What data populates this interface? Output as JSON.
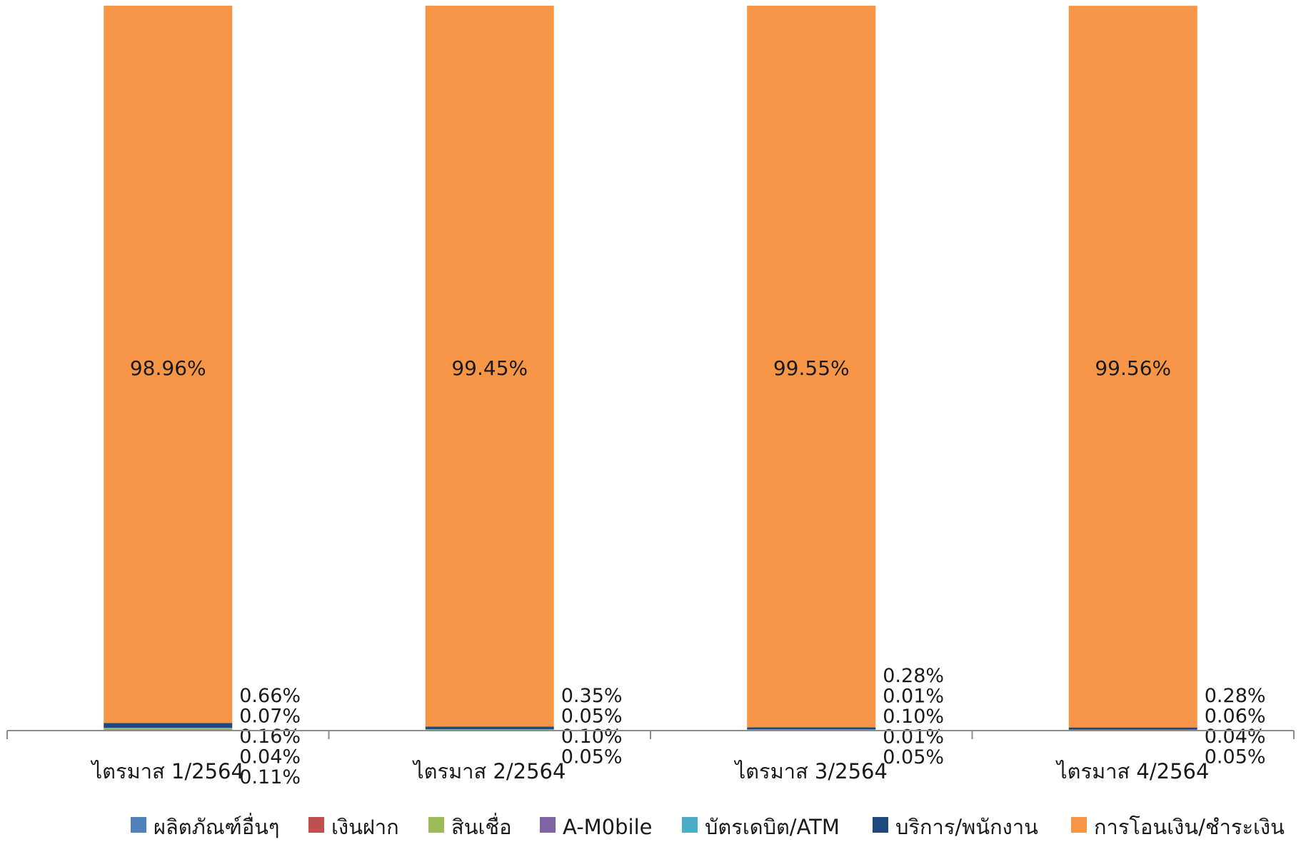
{
  "chart_data": {
    "type": "stacked-bar-100",
    "categories": [
      "ไตรมาส 1/2564",
      "ไตรมาส 2/2564",
      "ไตรมาส 3/2564",
      "ไตรมาส 4/2564"
    ],
    "series": [
      {
        "name": "ผลิตภัณฑ์อื่นๆ",
        "color": "#4f81bd",
        "values": [
          0.11,
          0.05,
          0.05,
          0.05
        ]
      },
      {
        "name": "เงินฝาก",
        "color": "#c0504d",
        "values": [
          0.04,
          0.0,
          0.01,
          0.0
        ]
      },
      {
        "name": "สินเชื่อ",
        "color": "#9bbb59",
        "values": [
          0.16,
          0.1,
          0.01,
          0.04
        ]
      },
      {
        "name": "A-M0bile",
        "color": "#8064a2",
        "values": [
          0.0,
          0.0,
          0.0,
          0.0
        ]
      },
      {
        "name": "บัตรเดบิต/ATM",
        "color": "#4bacc6",
        "values": [
          0.07,
          0.05,
          0.1,
          0.06
        ]
      },
      {
        "name": "บริการ/พนักงาน",
        "color": "#1f497d",
        "values": [
          0.66,
          0.35,
          0.28,
          0.28
        ]
      },
      {
        "name": "การโอนเงิน/ชำระเงิน",
        "color": "#f79646",
        "values": [
          98.96,
          99.45,
          99.55,
          99.56
        ]
      }
    ],
    "inbar_labels": [
      "98.96%",
      "99.45%",
      "99.55%",
      "99.56%"
    ],
    "side_labels": [
      [
        "0.66%",
        "0.07%",
        "0.16%",
        "0.04%",
        "0.11%"
      ],
      [
        "0.35%",
        "0.05%",
        "0.10%",
        "0.05%"
      ],
      [
        "0.28%",
        "0.01%",
        "0.10%",
        "0.01%",
        "0.05%"
      ],
      [
        "0.28%",
        "0.06%",
        "0.04%",
        "0.05%"
      ]
    ],
    "ylim": [
      0,
      100
    ],
    "legend_position": "bottom",
    "grid": false
  }
}
